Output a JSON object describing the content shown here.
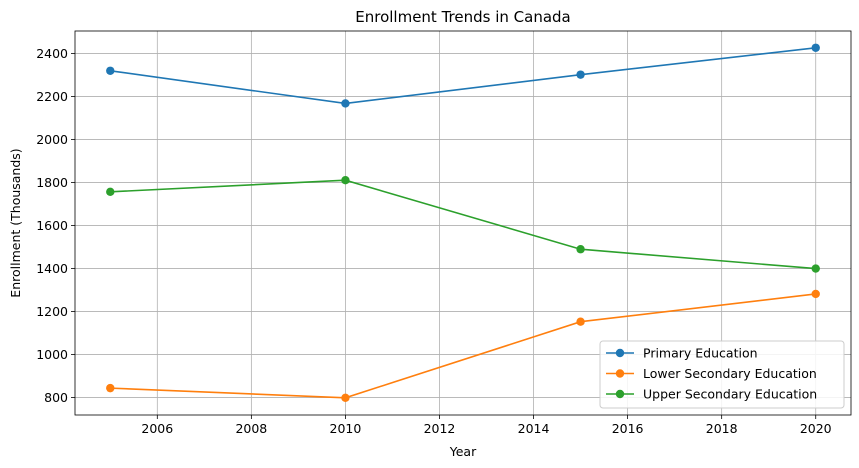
{
  "chart_data": {
    "type": "line",
    "title": "Enrollment Trends in Canada",
    "xlabel": "Year",
    "ylabel": "Enrollment (Thousands)",
    "x": [
      2005,
      2010,
      2015,
      2020
    ],
    "xlim": [
      2004.25,
      2020.75
    ],
    "ylim": [
      719,
      2505
    ],
    "xticks": [
      2006,
      2008,
      2010,
      2012,
      2014,
      2016,
      2018,
      2020
    ],
    "yticks": [
      800,
      1000,
      1200,
      1400,
      1600,
      1800,
      2000,
      2200,
      2400
    ],
    "grid": true,
    "legend_position": "lower-right",
    "series": [
      {
        "name": "Primary Education",
        "color": "#1f77b4",
        "values": [
          2320,
          2168,
          2302,
          2427
        ]
      },
      {
        "name": "Lower Secondary Education",
        "color": "#ff7f0e",
        "values": [
          844,
          799,
          1153,
          1282
        ]
      },
      {
        "name": "Upper Secondary Education",
        "color": "#2ca02c",
        "values": [
          1757,
          1811,
          1490,
          1400
        ]
      }
    ]
  }
}
